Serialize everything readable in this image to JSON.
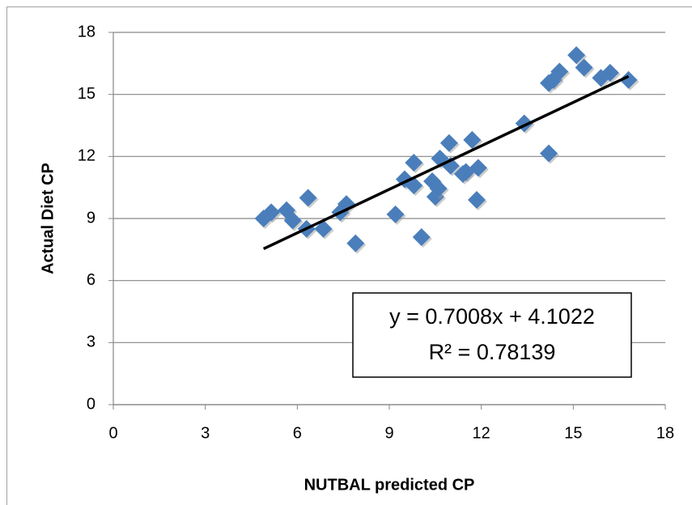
{
  "chart_data": {
    "type": "scatter",
    "x_label": "NUTBAL predicted CP",
    "y_label": "Actual Diet CP",
    "xlim": [
      0,
      18
    ],
    "xticks": [
      0,
      3,
      6,
      9,
      12,
      15,
      18
    ],
    "ylim": [
      0,
      18
    ],
    "yticks": [
      0,
      3,
      6,
      9,
      12,
      15,
      18
    ],
    "grid": true,
    "color": "#4a7ebb",
    "x": [
      4.9,
      5.15,
      5.65,
      5.85,
      6.3,
      6.35,
      6.85,
      7.4,
      7.6,
      7.9,
      9.2,
      9.5,
      9.8,
      9.8,
      10.05,
      10.4,
      10.5,
      10.6,
      10.65,
      10.95,
      11.0,
      11.4,
      11.5,
      11.7,
      11.85,
      11.9,
      13.4,
      14.2,
      14.2,
      14.35,
      14.55,
      15.1,
      15.35,
      15.9,
      16.2,
      16.8
    ],
    "values": [
      9.0,
      9.3,
      9.4,
      8.9,
      8.5,
      10.0,
      8.5,
      9.3,
      9.7,
      7.8,
      9.2,
      10.9,
      11.7,
      10.6,
      8.1,
      10.8,
      10.05,
      10.45,
      11.9,
      12.65,
      11.55,
      11.15,
      11.25,
      12.8,
      9.9,
      11.45,
      13.6,
      12.15,
      15.55,
      15.7,
      16.1,
      16.9,
      16.3,
      15.8,
      16.05,
      15.7
    ],
    "trendline": {
      "slope": 0.7008,
      "intercept": 4.1022,
      "color": "#000000"
    },
    "annotations": [
      "y = 0.7008x + 4.1022",
      "R² = 0.78139"
    ]
  }
}
